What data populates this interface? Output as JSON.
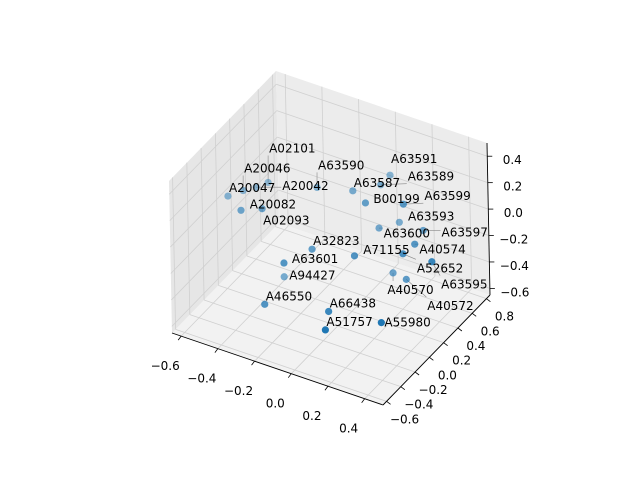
{
  "chart_data": {
    "type": "scatter",
    "projection": "3d",
    "title": "",
    "xlabel": "",
    "ylabel": "",
    "zlabel": "",
    "xlim": [
      -0.65,
      0.5
    ],
    "ylim": [
      -0.65,
      0.85
    ],
    "zlim": [
      -0.65,
      0.5
    ],
    "xticks": [
      -0.6,
      -0.4,
      -0.2,
      0.0,
      0.2,
      0.4
    ],
    "yticks": [
      -0.6,
      -0.4,
      -0.2,
      0.0,
      0.2,
      0.4,
      0.6,
      0.8
    ],
    "zticks": [
      -0.6,
      -0.4,
      -0.2,
      0.0,
      0.2,
      0.4
    ],
    "xtick_labels": [
      "−0.6",
      "−0.4",
      "−0.2",
      "0.0",
      "0.2",
      "0.4"
    ],
    "ytick_labels": [
      "−0.6",
      "−0.4",
      "−0.2",
      "0.0",
      "0.2",
      "0.4",
      "0.6",
      "0.8"
    ],
    "ztick_labels": [
      "−0.6",
      "−0.4",
      "−0.2",
      "0.0",
      "0.2",
      "0.4"
    ],
    "grid": true,
    "color": "#1f77b4",
    "points": [
      {
        "label": "A20047",
        "x": -0.44,
        "y": -0.37,
        "z": 0.33
      },
      {
        "label": "A20046",
        "x": -0.4,
        "y": -0.26,
        "z": 0.33
      },
      {
        "label": "A20042",
        "x": -0.36,
        "y": -0.18,
        "z": 0.33
      },
      {
        "label": "A02101",
        "x": -0.33,
        "y": -0.09,
        "z": 0.33
      },
      {
        "label": "A20082",
        "x": -0.33,
        "y": -0.47,
        "z": 0.33
      },
      {
        "label": "A02093",
        "x": -0.25,
        "y": -0.38,
        "z": 0.33
      },
      {
        "label": "A63590",
        "x": -0.11,
        "y": 0.03,
        "z": 0.33
      },
      {
        "label": "A63587",
        "x": 0.05,
        "y": 0.12,
        "z": 0.33
      },
      {
        "label": "A63591",
        "x": 0.14,
        "y": 0.41,
        "z": 0.33
      },
      {
        "label": "A63589",
        "x": 0.14,
        "y": 0.28,
        "z": 0.33
      },
      {
        "label": "B00199",
        "x": 0.15,
        "y": 0.04,
        "z": 0.33
      },
      {
        "label": "A63599",
        "x": 0.31,
        "y": 0.16,
        "z": 0.33
      },
      {
        "label": "A63593",
        "x": 0.21,
        "y": 0.35,
        "z": 0.04
      },
      {
        "label": "A63600",
        "x": 0.15,
        "y": 0.22,
        "z": 0.04
      },
      {
        "label": "A63597",
        "x": 0.34,
        "y": 0.35,
        "z": 0.04
      },
      {
        "label": "A40574",
        "x": 0.36,
        "y": 0.18,
        "z": 0.04
      },
      {
        "label": "A32823",
        "x": -0.04,
        "y": -0.23,
        "z": 0.04
      },
      {
        "label": "A71155",
        "x": 0.16,
        "y": -0.15,
        "z": 0.04
      },
      {
        "label": "A52652",
        "x": 0.35,
        "y": 0.04,
        "z": 0.04
      },
      {
        "label": "A63595",
        "x": 0.5,
        "y": 0.06,
        "z": 0.04
      },
      {
        "label": "A63601",
        "x": -0.1,
        "y": -0.47,
        "z": 0.04
      },
      {
        "label": "A94427",
        "x": -0.2,
        "y": -0.22,
        "z": -0.25
      },
      {
        "label": "A40570",
        "x": 0.23,
        "y": 0.2,
        "z": -0.25
      },
      {
        "label": "A40572",
        "x": 0.31,
        "y": 0.18,
        "z": -0.25
      },
      {
        "label": "A46550",
        "x": -0.17,
        "y": -0.57,
        "z": -0.25
      },
      {
        "label": "A66438",
        "x": 0.12,
        "y": -0.42,
        "z": -0.25
      },
      {
        "label": "A55980",
        "x": 0.38,
        "y": -0.35,
        "z": -0.25
      },
      {
        "label": "A51757",
        "x": 0.18,
        "y": -0.62,
        "z": -0.25
      }
    ]
  }
}
